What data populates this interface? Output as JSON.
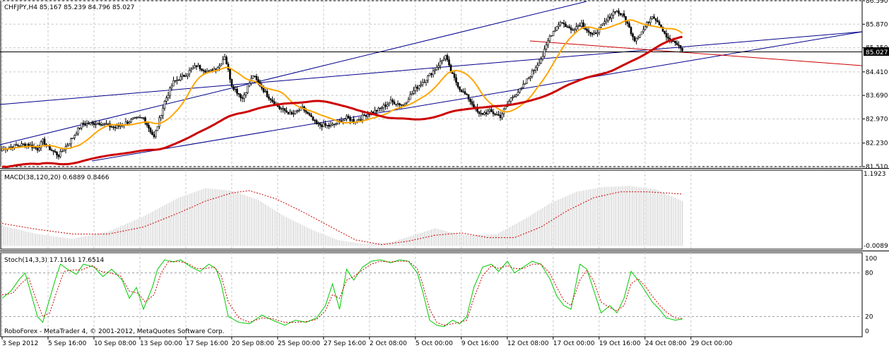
{
  "header": {
    "symbol_line": "CHFJPY,H4  85.167 85.239 84.796 85.027"
  },
  "macd_header": "MACD(38,120,20) 0.6889 0.8466",
  "stoch_header": "Stoch(14,3,3) 17.1161 17.6514",
  "footer": "RoboForex - MetaTrader 4, © 2001-2012, MetaQuotes Software Corp.",
  "current_price": "85.027",
  "colors": {
    "bull_candle": "#000000",
    "bear_candle": "#000000",
    "ma_fast": "#FFA500",
    "ma_slow": "#CC0000",
    "trendline_blue": "#00008B",
    "trendline_red": "#CC0000",
    "macd_hist": "#C0C0C0",
    "macd_signal": "#CC0000",
    "stoch_main": "#00CC00",
    "stoch_signal": "#CC0000",
    "grid": "#C8C8C8"
  },
  "chart_data": [
    {
      "type": "candlestick",
      "title": "CHFJPY,H4",
      "ylim": [
        81.51,
        86.59
      ],
      "y_ticks": [
        "86.590",
        "85.870",
        "85.150",
        "85.027",
        "84.410",
        "83.690",
        "82.970",
        "82.230",
        "81.510"
      ],
      "x_ticks": [
        "3 Sep 2012",
        "5 Sep 16:00",
        "10 Sep 08:00",
        "13 Sep 00:00",
        "17 Sep 16:00",
        "20 Sep 08:00",
        "25 Sep 00:00",
        "27 Sep 16:00",
        "2 Oct 08:00",
        "5 Oct 00:00",
        "9 Oct 16:00",
        "12 Oct 08:00",
        "17 Oct 00:00",
        "19 Oct 16:00",
        "24 Oct 08:00",
        "29 Oct 00:00"
      ],
      "close_path": [
        [
          0,
          82.05
        ],
        [
          8,
          82.15
        ],
        [
          14,
          82.2
        ],
        [
          20,
          82.05
        ],
        [
          23,
          82.3
        ],
        [
          26,
          82.1
        ],
        [
          32,
          81.85
        ],
        [
          38,
          82.25
        ],
        [
          45,
          82.8
        ],
        [
          55,
          82.85
        ],
        [
          64,
          82.7
        ],
        [
          74,
          82.95
        ],
        [
          80,
          83.0
        ],
        [
          86,
          82.4
        ],
        [
          92,
          83.5
        ],
        [
          97,
          84.1
        ],
        [
          103,
          84.3
        ],
        [
          110,
          84.6
        ],
        [
          117,
          84.4
        ],
        [
          123,
          84.6
        ],
        [
          126,
          84.9
        ],
        [
          130,
          84.0
        ],
        [
          136,
          83.6
        ],
        [
          142,
          84.3
        ],
        [
          150,
          83.7
        ],
        [
          157,
          83.3
        ],
        [
          164,
          83.1
        ],
        [
          170,
          83.3
        ],
        [
          178,
          82.8
        ],
        [
          186,
          82.75
        ],
        [
          195,
          83.0
        ],
        [
          200,
          82.9
        ],
        [
          206,
          83.1
        ],
        [
          213,
          83.25
        ],
        [
          220,
          83.5
        ],
        [
          227,
          83.4
        ],
        [
          234,
          83.9
        ],
        [
          240,
          84.2
        ],
        [
          245,
          84.5
        ],
        [
          251,
          84.9
        ],
        [
          254,
          84.4
        ],
        [
          259,
          83.9
        ],
        [
          264,
          83.6
        ],
        [
          270,
          83.1
        ],
        [
          276,
          83.2
        ],
        [
          282,
          83.05
        ],
        [
          288,
          83.6
        ],
        [
          294,
          83.9
        ],
        [
          300,
          84.4
        ],
        [
          306,
          84.9
        ],
        [
          310,
          85.5
        ],
        [
          316,
          85.95
        ],
        [
          322,
          85.7
        ],
        [
          328,
          85.9
        ],
        [
          334,
          85.5
        ],
        [
          340,
          85.85
        ],
        [
          347,
          86.3
        ],
        [
          352,
          86.1
        ],
        [
          358,
          85.4
        ],
        [
          363,
          85.7
        ],
        [
          368,
          86.15
        ],
        [
          372,
          85.9
        ],
        [
          377,
          85.4
        ],
        [
          382,
          85.25
        ],
        [
          386,
          85.03
        ]
      ]
    },
    {
      "type": "histogram+line",
      "title": "MACD(38,120,20)",
      "y_ticks": [
        "1.1923",
        "-0.0089"
      ],
      "hist_path": [
        [
          0,
          0.34
        ],
        [
          20,
          0.2
        ],
        [
          40,
          0.12
        ],
        [
          60,
          0.24
        ],
        [
          80,
          0.5
        ],
        [
          100,
          0.82
        ],
        [
          115,
          0.98
        ],
        [
          130,
          0.94
        ],
        [
          145,
          0.78
        ],
        [
          160,
          0.5
        ],
        [
          175,
          0.28
        ],
        [
          190,
          0.1
        ],
        [
          205,
          0.03
        ],
        [
          220,
          0.06
        ],
        [
          235,
          0.2
        ],
        [
          245,
          0.3
        ],
        [
          255,
          0.22
        ],
        [
          265,
          0.18
        ],
        [
          280,
          0.2
        ],
        [
          295,
          0.44
        ],
        [
          310,
          0.72
        ],
        [
          325,
          0.92
        ],
        [
          340,
          1.0
        ],
        [
          355,
          1.02
        ],
        [
          370,
          0.96
        ],
        [
          386,
          0.75
        ]
      ],
      "signal_path": [
        [
          0,
          0.38
        ],
        [
          20,
          0.28
        ],
        [
          40,
          0.2
        ],
        [
          60,
          0.2
        ],
        [
          80,
          0.32
        ],
        [
          100,
          0.56
        ],
        [
          115,
          0.76
        ],
        [
          130,
          0.9
        ],
        [
          140,
          0.94
        ],
        [
          155,
          0.8
        ],
        [
          170,
          0.58
        ],
        [
          185,
          0.34
        ],
        [
          200,
          0.1
        ],
        [
          215,
          0.02
        ],
        [
          230,
          0.08
        ],
        [
          245,
          0.18
        ],
        [
          260,
          0.22
        ],
        [
          275,
          0.14
        ],
        [
          290,
          0.14
        ],
        [
          305,
          0.32
        ],
        [
          320,
          0.6
        ],
        [
          335,
          0.82
        ],
        [
          350,
          0.92
        ],
        [
          365,
          0.92
        ],
        [
          386,
          0.88
        ]
      ]
    },
    {
      "type": "line",
      "title": "Stoch(14,3,3)",
      "ylim": [
        0,
        100
      ],
      "y_ticks": [
        "100",
        "80",
        "20",
        "0"
      ],
      "main_path": [
        [
          0,
          45
        ],
        [
          5,
          55
        ],
        [
          10,
          72
        ],
        [
          13,
          80
        ],
        [
          16,
          55
        ],
        [
          20,
          20
        ],
        [
          23,
          12
        ],
        [
          27,
          45
        ],
        [
          30,
          70
        ],
        [
          33,
          92
        ],
        [
          37,
          85
        ],
        [
          42,
          78
        ],
        [
          46,
          92
        ],
        [
          52,
          88
        ],
        [
          57,
          75
        ],
        [
          62,
          85
        ],
        [
          68,
          70
        ],
        [
          72,
          45
        ],
        [
          76,
          60
        ],
        [
          80,
          30
        ],
        [
          85,
          60
        ],
        [
          88,
          85
        ],
        [
          92,
          98
        ],
        [
          97,
          95
        ],
        [
          101,
          98
        ],
        [
          107,
          88
        ],
        [
          112,
          82
        ],
        [
          117,
          92
        ],
        [
          121,
          86
        ],
        [
          124,
          65
        ],
        [
          128,
          20
        ],
        [
          134,
          12
        ],
        [
          140,
          10
        ],
        [
          147,
          22
        ],
        [
          153,
          15
        ],
        [
          160,
          8
        ],
        [
          166,
          15
        ],
        [
          172,
          12
        ],
        [
          178,
          18
        ],
        [
          183,
          35
        ],
        [
          187,
          65
        ],
        [
          191,
          30
        ],
        [
          195,
          85
        ],
        [
          199,
          70
        ],
        [
          204,
          88
        ],
        [
          209,
          96
        ],
        [
          214,
          98
        ],
        [
          220,
          94
        ],
        [
          225,
          98
        ],
        [
          230,
          96
        ],
        [
          235,
          80
        ],
        [
          238,
          55
        ],
        [
          242,
          15
        ],
        [
          246,
          8
        ],
        [
          250,
          6
        ],
        [
          255,
          15
        ],
        [
          259,
          10
        ],
        [
          263,
          20
        ],
        [
          267,
          60
        ],
        [
          272,
          88
        ],
        [
          277,
          92
        ],
        [
          281,
          82
        ],
        [
          286,
          96
        ],
        [
          290,
          80
        ],
        [
          295,
          88
        ],
        [
          300,
          96
        ],
        [
          305,
          92
        ],
        [
          310,
          72
        ],
        [
          314,
          48
        ],
        [
          318,
          35
        ],
        [
          322,
          30
        ],
        [
          327,
          92
        ],
        [
          331,
          85
        ],
        [
          335,
          55
        ],
        [
          339,
          25
        ],
        [
          344,
          35
        ],
        [
          348,
          25
        ],
        [
          352,
          45
        ],
        [
          356,
          82
        ],
        [
          360,
          70
        ],
        [
          364,
          55
        ],
        [
          368,
          40
        ],
        [
          372,
          30
        ],
        [
          376,
          18
        ],
        [
          381,
          15
        ],
        [
          386,
          17
        ]
      ],
      "signal_path": [
        [
          0,
          50
        ],
        [
          6,
          52
        ],
        [
          11,
          66
        ],
        [
          15,
          74
        ],
        [
          19,
          45
        ],
        [
          23,
          20
        ],
        [
          27,
          25
        ],
        [
          31,
          55
        ],
        [
          35,
          82
        ],
        [
          40,
          84
        ],
        [
          45,
          84
        ],
        [
          51,
          90
        ],
        [
          56,
          82
        ],
        [
          61,
          80
        ],
        [
          67,
          76
        ],
        [
          72,
          55
        ],
        [
          77,
          52
        ],
        [
          81,
          40
        ],
        [
          86,
          50
        ],
        [
          90,
          80
        ],
        [
          94,
          95
        ],
        [
          99,
          96
        ],
        [
          104,
          94
        ],
        [
          110,
          86
        ],
        [
          115,
          86
        ],
        [
          120,
          88
        ],
        [
          124,
          76
        ],
        [
          128,
          40
        ],
        [
          134,
          18
        ],
        [
          140,
          12
        ],
        [
          147,
          18
        ],
        [
          153,
          17
        ],
        [
          160,
          12
        ],
        [
          166,
          12
        ],
        [
          172,
          13
        ],
        [
          178,
          16
        ],
        [
          183,
          28
        ],
        [
          187,
          50
        ],
        [
          191,
          45
        ],
        [
          195,
          70
        ],
        [
          199,
          75
        ],
        [
          204,
          84
        ],
        [
          209,
          92
        ],
        [
          214,
          96
        ],
        [
          220,
          95
        ],
        [
          225,
          96
        ],
        [
          230,
          96
        ],
        [
          235,
          86
        ],
        [
          238,
          65
        ],
        [
          242,
          30
        ],
        [
          246,
          12
        ],
        [
          250,
          8
        ],
        [
          255,
          10
        ],
        [
          259,
          12
        ],
        [
          263,
          15
        ],
        [
          267,
          45
        ],
        [
          272,
          76
        ],
        [
          277,
          90
        ],
        [
          281,
          86
        ],
        [
          286,
          90
        ],
        [
          290,
          86
        ],
        [
          295,
          86
        ],
        [
          300,
          92
        ],
        [
          305,
          92
        ],
        [
          310,
          80
        ],
        [
          314,
          60
        ],
        [
          318,
          42
        ],
        [
          322,
          35
        ],
        [
          327,
          70
        ],
        [
          331,
          84
        ],
        [
          335,
          68
        ],
        [
          339,
          40
        ],
        [
          344,
          32
        ],
        [
          348,
          28
        ],
        [
          352,
          35
        ],
        [
          356,
          65
        ],
        [
          360,
          72
        ],
        [
          364,
          62
        ],
        [
          368,
          48
        ],
        [
          372,
          36
        ],
        [
          376,
          26
        ],
        [
          381,
          18
        ],
        [
          386,
          17
        ]
      ]
    }
  ]
}
